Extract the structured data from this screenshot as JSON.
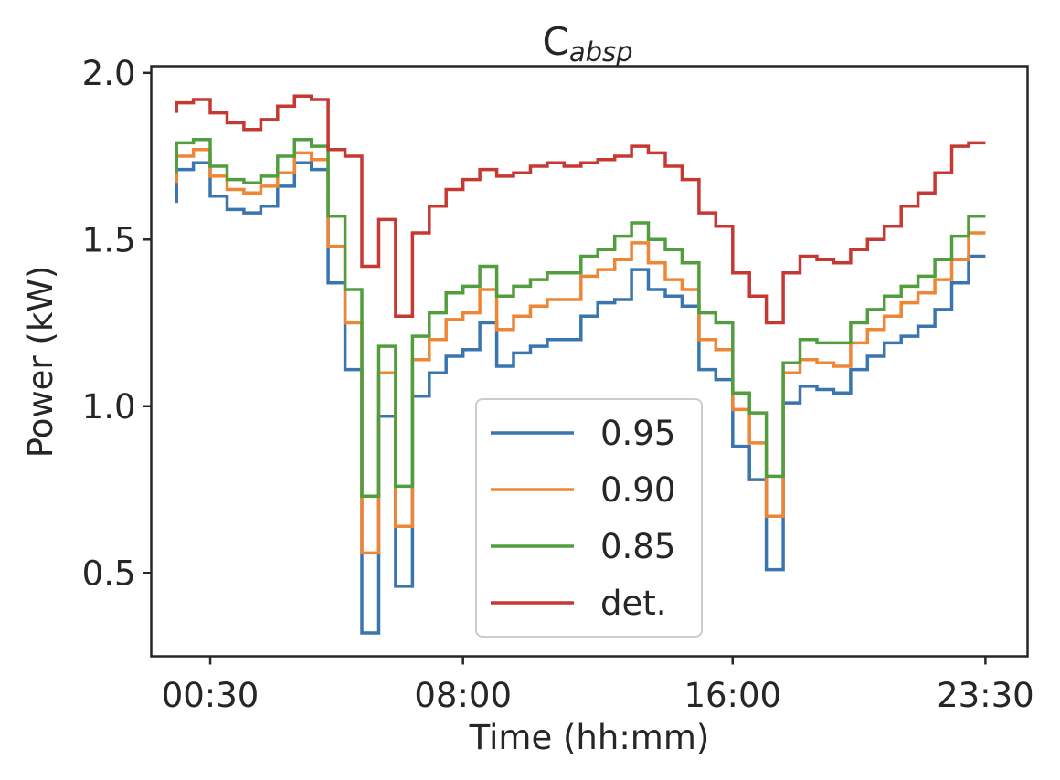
{
  "chart_data": {
    "type": "line",
    "drawstyle": "steps",
    "title": "C",
    "title_subscript": "absp",
    "xlabel": "Time (hh:mm)",
    "ylabel": "Power (kW)",
    "x_unit": "hours",
    "xlim": [
      -1.25,
      24.75
    ],
    "ylim": [
      0.25,
      2.02
    ],
    "xticks": [
      {
        "value": 0.5,
        "label": "00:30"
      },
      {
        "value": 8.0,
        "label": "08:00"
      },
      {
        "value": 16.0,
        "label": "16:00"
      },
      {
        "value": 23.5,
        "label": "23:30"
      }
    ],
    "yticks": [
      {
        "value": 0.5,
        "label": "0.5"
      },
      {
        "value": 1.0,
        "label": "1.0"
      },
      {
        "value": 1.5,
        "label": "1.5"
      },
      {
        "value": 2.0,
        "label": "2.0"
      }
    ],
    "grid": false,
    "legend_position": "lower-center",
    "x": [
      -0.5,
      0.0,
      0.5,
      1.0,
      1.5,
      2.0,
      2.5,
      3.0,
      3.5,
      4.0,
      4.5,
      5.0,
      5.5,
      6.0,
      6.5,
      7.0,
      7.5,
      8.0,
      8.5,
      9.0,
      9.5,
      10.0,
      10.5,
      11.0,
      11.5,
      12.0,
      12.5,
      13.0,
      13.5,
      14.0,
      14.5,
      15.0,
      15.5,
      16.0,
      16.5,
      17.0,
      17.5,
      18.0,
      18.5,
      19.0,
      19.5,
      20.0,
      20.5,
      21.0,
      21.5,
      22.0,
      22.5,
      23.0,
      23.5
    ],
    "series": [
      {
        "name": "0.95",
        "color": "#3a75af",
        "values": [
          1.61,
          1.71,
          1.73,
          1.63,
          1.59,
          1.58,
          1.6,
          1.66,
          1.73,
          1.71,
          1.37,
          1.11,
          0.32,
          0.97,
          0.46,
          1.03,
          1.1,
          1.15,
          1.17,
          1.25,
          1.12,
          1.16,
          1.18,
          1.2,
          1.2,
          1.27,
          1.31,
          1.32,
          1.41,
          1.35,
          1.33,
          1.3,
          1.11,
          1.08,
          0.88,
          0.78,
          0.51,
          1.01,
          1.06,
          1.05,
          1.04,
          1.11,
          1.15,
          1.19,
          1.21,
          1.24,
          1.29,
          1.37,
          1.45
        ]
      },
      {
        "name": "0.90",
        "color": "#ef8636",
        "values": [
          1.67,
          1.75,
          1.77,
          1.69,
          1.65,
          1.64,
          1.66,
          1.7,
          1.76,
          1.74,
          1.48,
          1.25,
          0.56,
          1.1,
          0.64,
          1.14,
          1.2,
          1.26,
          1.28,
          1.35,
          1.23,
          1.27,
          1.3,
          1.32,
          1.32,
          1.39,
          1.41,
          1.44,
          1.49,
          1.43,
          1.38,
          1.35,
          1.2,
          1.17,
          0.99,
          0.89,
          0.67,
          1.1,
          1.14,
          1.13,
          1.12,
          1.19,
          1.23,
          1.27,
          1.31,
          1.34,
          1.38,
          1.44,
          1.52
        ]
      },
      {
        "name": "0.85",
        "color": "#529e3e",
        "values": [
          1.7,
          1.79,
          1.8,
          1.72,
          1.68,
          1.67,
          1.69,
          1.75,
          1.8,
          1.78,
          1.57,
          1.35,
          0.73,
          1.18,
          0.76,
          1.21,
          1.28,
          1.34,
          1.36,
          1.42,
          1.33,
          1.36,
          1.38,
          1.4,
          1.4,
          1.45,
          1.47,
          1.51,
          1.55,
          1.5,
          1.47,
          1.43,
          1.28,
          1.25,
          1.04,
          0.98,
          0.79,
          1.13,
          1.2,
          1.19,
          1.19,
          1.25,
          1.29,
          1.33,
          1.36,
          1.39,
          1.44,
          1.51,
          1.57
        ]
      },
      {
        "name": "det.",
        "color": "#c53932",
        "values": [
          1.88,
          1.91,
          1.92,
          1.88,
          1.85,
          1.83,
          1.86,
          1.9,
          1.93,
          1.92,
          1.77,
          1.75,
          1.42,
          1.56,
          1.27,
          1.52,
          1.6,
          1.65,
          1.68,
          1.71,
          1.69,
          1.7,
          1.72,
          1.73,
          1.72,
          1.73,
          1.74,
          1.75,
          1.78,
          1.76,
          1.72,
          1.68,
          1.58,
          1.54,
          1.4,
          1.33,
          1.25,
          1.4,
          1.45,
          1.44,
          1.43,
          1.47,
          1.5,
          1.54,
          1.6,
          1.64,
          1.7,
          1.78,
          1.79
        ]
      }
    ]
  }
}
